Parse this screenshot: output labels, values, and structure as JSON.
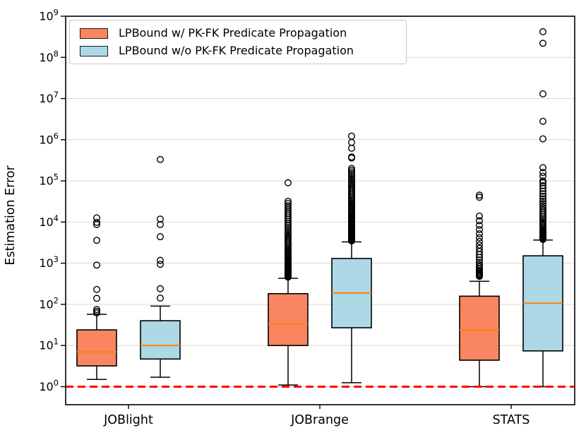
{
  "figure": {
    "ylabel": "Estimation Error"
  },
  "legend": {
    "items": [
      {
        "label": "LPBound w/ PK-FK Predicate Propagation",
        "color": "#F98660"
      },
      {
        "label": "LPBound w/o PK-FK Predicate Propagation",
        "color": "#ADD8E6"
      }
    ]
  },
  "chart_data": {
    "type": "boxplot",
    "title": "",
    "xlabel": "",
    "ylabel": "Estimation Error",
    "y_scale": "log",
    "ylim": [
      1,
      1000000000
    ],
    "y_tick_base": "10",
    "y_tick_exponents": [
      0,
      1,
      2,
      3,
      4,
      5,
      6,
      7,
      8,
      9
    ],
    "grid": "horizontal",
    "legend_position": "upper left",
    "categories": [
      "JOBlight",
      "JOBrange",
      "STATS"
    ],
    "reference_line": {
      "y": 1,
      "color": "#ff0000",
      "style": "dashed",
      "width": 3
    },
    "median_color": "#ff7f0e",
    "box_edge_color": "#000000",
    "grid_color": "#d8d8d8",
    "series": [
      {
        "name": "LPBound w/ PK-FK Predicate Propagation",
        "color": "#F98660",
        "boxes": [
          {
            "category": "JOBlight",
            "whislo": 1.5,
            "q1": 3.2,
            "med": 7,
            "q3": 24,
            "whishi": 57,
            "outliers": [
              62,
              68,
              75,
              140,
              230,
              900,
              3600,
              8700,
              9800,
              12600
            ]
          },
          {
            "category": "JOBrange",
            "whislo": 1.1,
            "q1": 10,
            "med": 34,
            "q3": 182,
            "whishi": 430,
            "outliers": [
              90000
            ],
            "outlier_band": {
              "from": 460,
              "to": 32000,
              "count": 70
            }
          },
          {
            "category": "STATS",
            "whislo": 1.0,
            "q1": 4.4,
            "med": 24,
            "q3": 158,
            "whishi": 363,
            "outliers": [
              40000,
              45000
            ],
            "outlier_band": {
              "from": 480,
              "to": 14000,
              "count": 26
            }
          }
        ]
      },
      {
        "name": "LPBound w/o PK-FK Predicate Propagation",
        "color": "#ADD8E6",
        "boxes": [
          {
            "category": "JOBlight",
            "whislo": 1.7,
            "q1": 4.7,
            "med": 10,
            "q3": 40,
            "whishi": 91,
            "outliers": [
              142,
              240,
              940,
              1170,
              4400,
              8700,
              11800,
              330000
            ]
          },
          {
            "category": "JOBrange",
            "whislo": 1.25,
            "q1": 27,
            "med": 190,
            "q3": 1300,
            "whishi": 3300,
            "outliers": [
              360000,
              380000,
              620000,
              860000,
              1220000
            ],
            "outlier_band": {
              "from": 3500,
              "to": 200000,
              "count": 80
            }
          },
          {
            "category": "STATS",
            "whislo": 1.0,
            "q1": 7.4,
            "med": 107,
            "q3": 1510,
            "whishi": 3650,
            "outliers": [
              100000,
              130000,
              160000,
              210000,
              1050000,
              2800000,
              13000000,
              220000000,
              420000000
            ],
            "outlier_band": {
              "from": 3800,
              "to": 90000,
              "count": 40
            }
          }
        ]
      }
    ]
  }
}
